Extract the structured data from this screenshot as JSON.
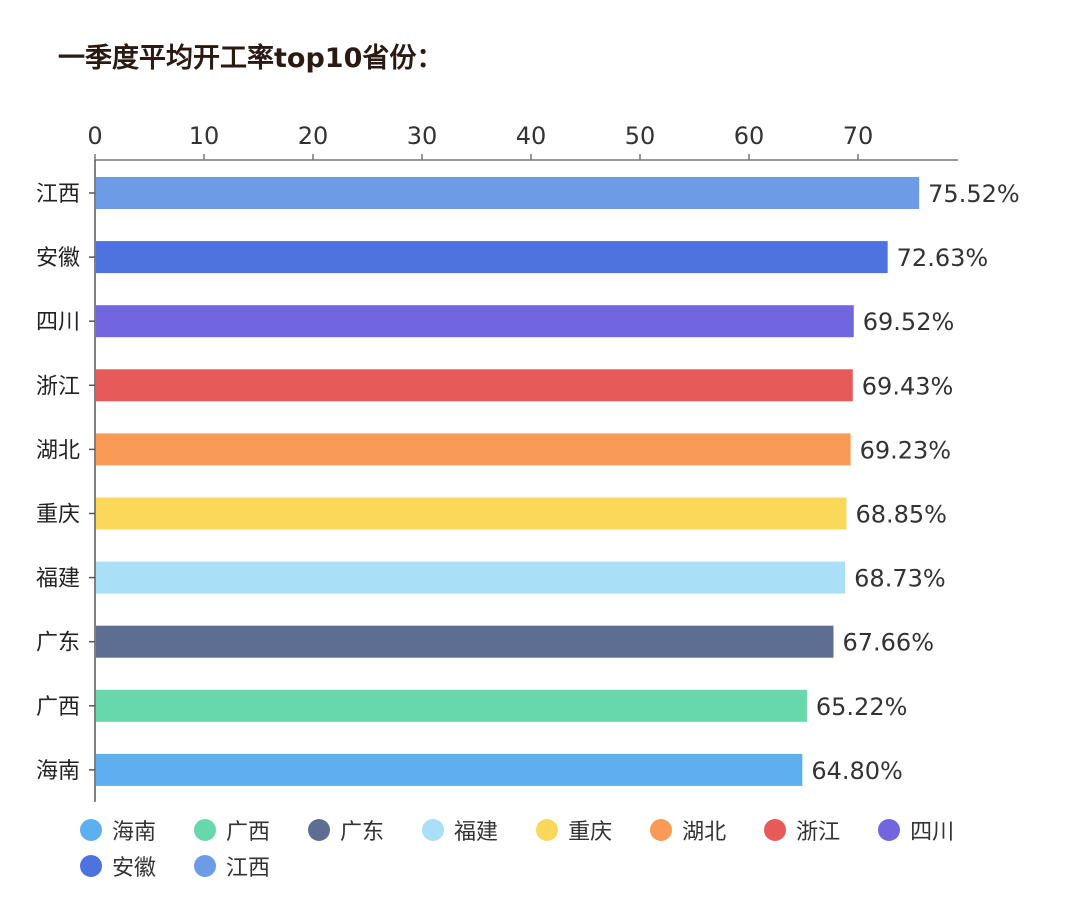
{
  "chart_data": {
    "type": "bar",
    "orientation": "horizontal",
    "title": "一季度平均开工率top10省份：",
    "categories": [
      "江西",
      "安徽",
      "四川",
      "浙江",
      "湖北",
      "重庆",
      "福建",
      "广东",
      "广西",
      "海南"
    ],
    "values": [
      75.52,
      72.63,
      69.52,
      69.43,
      69.23,
      68.85,
      68.73,
      67.66,
      65.22,
      64.8
    ],
    "data_labels": [
      "75.52%",
      "72.63%",
      "69.52%",
      "69.43%",
      "69.23%",
      "68.85%",
      "68.73%",
      "67.66%",
      "65.22%",
      "64.80%"
    ],
    "colors": [
      "#6d9be6",
      "#4e73df",
      "#7165e0",
      "#e65a5a",
      "#f99a56",
      "#fcd85a",
      "#a9dff7",
      "#5e6e93",
      "#66d8ab",
      "#5eaff0"
    ],
    "xaxis_position": "top",
    "xticks": [
      0,
      10,
      20,
      30,
      40,
      50,
      60,
      70
    ],
    "xlim": [
      0,
      79
    ],
    "xlabel": "",
    "ylabel": "",
    "grid": false,
    "legend_position": "bottom",
    "legend": [
      {
        "label": "海南",
        "color": "#5eaff0"
      },
      {
        "label": "广西",
        "color": "#66d8ab"
      },
      {
        "label": "广东",
        "color": "#5e6e93"
      },
      {
        "label": "福建",
        "color": "#a9dff7"
      },
      {
        "label": "重庆",
        "color": "#fcd85a"
      },
      {
        "label": "湖北",
        "color": "#f99a56"
      },
      {
        "label": "浙江",
        "color": "#e65a5a"
      },
      {
        "label": "四川",
        "color": "#7165e0"
      },
      {
        "label": "安徽",
        "color": "#4e73df"
      },
      {
        "label": "江西",
        "color": "#6d9be6"
      }
    ]
  }
}
